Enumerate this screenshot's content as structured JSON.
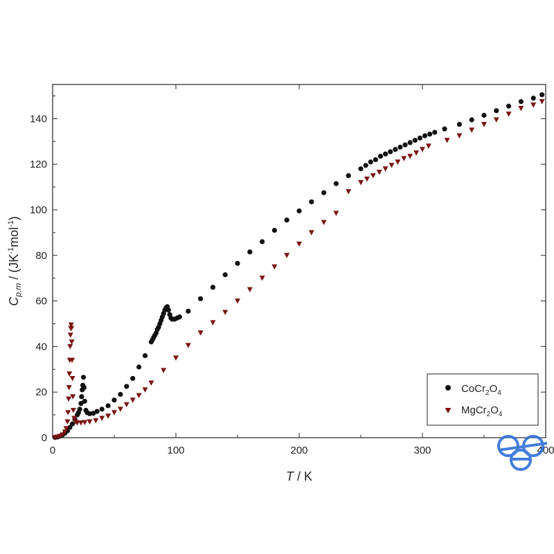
{
  "chart_data": {
    "type": "scatter",
    "xlabel": {
      "italic": "T",
      "rest": " / K"
    },
    "ylabel": {
      "italic": "C",
      "sub": "p,m",
      "rest": " / (JK",
      "sup1": "-1",
      "mid": "mol",
      "sup2": "-1",
      "end": ")"
    },
    "xlim": [
      0,
      400
    ],
    "ylim": [
      0,
      155
    ],
    "xticks": [
      0,
      100,
      200,
      300,
      400
    ],
    "xtick_labels": [
      "0",
      "100",
      "200",
      "300",
      "400"
    ],
    "yticks": [
      0,
      20,
      40,
      60,
      80,
      100,
      120,
      140
    ],
    "ytick_labels": [
      "0",
      "20",
      "40",
      "60",
      "80",
      "100",
      "120",
      "140"
    ],
    "grid": false,
    "legend_position": "bottom-right",
    "series": [
      {
        "name": "CoCr2O4",
        "name_parts": {
          "a": "CoCr",
          "s1": "2",
          "b": "O",
          "s2": "4"
        },
        "marker": "circle",
        "color": "#111111",
        "points": [
          [
            2,
            0.1
          ],
          [
            4,
            0.3
          ],
          [
            6,
            0.7
          ],
          [
            8,
            1.2
          ],
          [
            10,
            2
          ],
          [
            12,
            3
          ],
          [
            14,
            4.5
          ],
          [
            16,
            6
          ],
          [
            18,
            8
          ],
          [
            20,
            10
          ],
          [
            21,
            11
          ],
          [
            22,
            12.5
          ],
          [
            23,
            15
          ],
          [
            23.5,
            18
          ],
          [
            24,
            21
          ],
          [
            24.5,
            23
          ],
          [
            25,
            26.5
          ],
          [
            25.5,
            22
          ],
          [
            26,
            16
          ],
          [
            27,
            12
          ],
          [
            28,
            11
          ],
          [
            30,
            10.5
          ],
          [
            33,
            10.7
          ],
          [
            36,
            11.5
          ],
          [
            40,
            12.5
          ],
          [
            45,
            14
          ],
          [
            50,
            16.5
          ],
          [
            55,
            19
          ],
          [
            60,
            22.5
          ],
          [
            65,
            26
          ],
          [
            70,
            31
          ],
          [
            75,
            36
          ],
          [
            80,
            42
          ],
          [
            81,
            43
          ],
          [
            82,
            44
          ],
          [
            83,
            45
          ],
          [
            84,
            46
          ],
          [
            85,
            47.5
          ],
          [
            86,
            48.5
          ],
          [
            87,
            50
          ],
          [
            88,
            51.5
          ],
          [
            89,
            53
          ],
          [
            90,
            54.5
          ],
          [
            91,
            56
          ],
          [
            92,
            57
          ],
          [
            93,
            57.5
          ],
          [
            94,
            56
          ],
          [
            95,
            54
          ],
          [
            96,
            52.5
          ],
          [
            97,
            52
          ],
          [
            99,
            52
          ],
          [
            101,
            52.5
          ],
          [
            103,
            53
          ],
          [
            110,
            55.5
          ],
          [
            120,
            61
          ],
          [
            130,
            66
          ],
          [
            140,
            71.5
          ],
          [
            150,
            76.5
          ],
          [
            160,
            81.5
          ],
          [
            170,
            86
          ],
          [
            180,
            91
          ],
          [
            190,
            95.5
          ],
          [
            200,
            99.5
          ],
          [
            210,
            103.5
          ],
          [
            220,
            107.5
          ],
          [
            230,
            111.5
          ],
          [
            240,
            115
          ],
          [
            250,
            118
          ],
          [
            254,
            119.5
          ],
          [
            258,
            121
          ],
          [
            262,
            122
          ],
          [
            266,
            123.5
          ],
          [
            270,
            124.5
          ],
          [
            274,
            125.5
          ],
          [
            278,
            126.5
          ],
          [
            282,
            127.5
          ],
          [
            286,
            128.5
          ],
          [
            290,
            129.5
          ],
          [
            294,
            130.5
          ],
          [
            298,
            131.5
          ],
          [
            302,
            132.5
          ],
          [
            306,
            133.2
          ],
          [
            310,
            134
          ],
          [
            318,
            135.5
          ],
          [
            330,
            137.5
          ],
          [
            340,
            139.5
          ],
          [
            350,
            141.5
          ],
          [
            360,
            143.5
          ],
          [
            370,
            145.5
          ],
          [
            380,
            147.5
          ],
          [
            390,
            149
          ],
          [
            397,
            150.5
          ]
        ]
      },
      {
        "name": "MgCr2O4",
        "name_parts": {
          "a": "MgCr",
          "s1": "2",
          "b": "O",
          "s2": "4"
        },
        "marker": "triangle-down",
        "color": "#7a1414",
        "points": [
          [
            2,
            0.1
          ],
          [
            4,
            0.3
          ],
          [
            6,
            0.6
          ],
          [
            8,
            1.2
          ],
          [
            10,
            2.5
          ],
          [
            11,
            4
          ],
          [
            12,
            7
          ],
          [
            12.5,
            11
          ],
          [
            13,
            17
          ],
          [
            13.3,
            22
          ],
          [
            13.6,
            28
          ],
          [
            13.9,
            34
          ],
          [
            14.2,
            40
          ],
          [
            14.5,
            45
          ],
          [
            14.8,
            48
          ],
          [
            15,
            49.5
          ],
          [
            15.2,
            48
          ],
          [
            15.5,
            42
          ],
          [
            15.8,
            34
          ],
          [
            16.1,
            26
          ],
          [
            16.4,
            18
          ],
          [
            16.8,
            12
          ],
          [
            17.5,
            8.5
          ],
          [
            18.5,
            7
          ],
          [
            20,
            6.5
          ],
          [
            23,
            6.5
          ],
          [
            26,
            6.7
          ],
          [
            30,
            7
          ],
          [
            35,
            7.5
          ],
          [
            40,
            8.5
          ],
          [
            45,
            9.5
          ],
          [
            50,
            11
          ],
          [
            55,
            12.5
          ],
          [
            60,
            14.5
          ],
          [
            65,
            16.5
          ],
          [
            70,
            18.5
          ],
          [
            75,
            21
          ],
          [
            80,
            24
          ],
          [
            90,
            29.5
          ],
          [
            100,
            35
          ],
          [
            110,
            40.5
          ],
          [
            120,
            46
          ],
          [
            130,
            50.5
          ],
          [
            140,
            55
          ],
          [
            150,
            60
          ],
          [
            160,
            65
          ],
          [
            170,
            70
          ],
          [
            180,
            75
          ],
          [
            190,
            80
          ],
          [
            200,
            85
          ],
          [
            210,
            90
          ],
          [
            220,
            94.5
          ],
          [
            230,
            98.5
          ],
          [
            240,
            108
          ],
          [
            250,
            112
          ],
          [
            255,
            113.5
          ],
          [
            260,
            115
          ],
          [
            265,
            116.5
          ],
          [
            270,
            118
          ],
          [
            275,
            119.5
          ],
          [
            280,
            121
          ],
          [
            285,
            122.5
          ],
          [
            290,
            123.5
          ],
          [
            295,
            125
          ],
          [
            300,
            126.5
          ],
          [
            305,
            128
          ],
          [
            320,
            130.5
          ],
          [
            330,
            132.5
          ],
          [
            340,
            135
          ],
          [
            350,
            137.5
          ],
          [
            360,
            139.5
          ],
          [
            370,
            142
          ],
          [
            380,
            144.5
          ],
          [
            390,
            146
          ],
          [
            397,
            147.5
          ]
        ]
      }
    ]
  },
  "watermark": {
    "icon": "logo-icon",
    "color": "#2f6fd6"
  }
}
